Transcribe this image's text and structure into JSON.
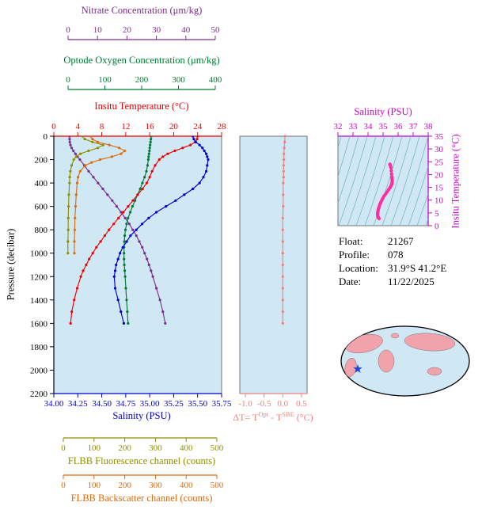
{
  "figure": {
    "bg": "#ffffff",
    "plot_bg": "#cfe8f4"
  },
  "axes": {
    "nitrate": {
      "title": "Nitrate Concentration (μm/kg)",
      "color": "#7b2d8b",
      "ticks": [
        "0",
        "10",
        "20",
        "30",
        "40",
        "50"
      ],
      "min": 0,
      "max": 50
    },
    "oxygen": {
      "title": "Optode Oxygen Concentration (μm/kg)",
      "color": "#007a33",
      "ticks": [
        "0",
        "100",
        "200",
        "300",
        "400"
      ],
      "min": 0,
      "max": 400
    },
    "temperature": {
      "title": "Insitu Temperature (°C)",
      "color": "#ee0000",
      "ticks": [
        "0",
        "4",
        "8",
        "12",
        "16",
        "20",
        "24",
        "28"
      ],
      "min": 0,
      "max": 28
    },
    "pressure": {
      "title": "Pressure (decibar)",
      "color": "#000000",
      "ticks": [
        "0",
        "200",
        "400",
        "600",
        "800",
        "1000",
        "1200",
        "1400",
        "1600",
        "1800",
        "2000",
        "2200"
      ],
      "min": 0,
      "max": 2200
    },
    "salinity": {
      "title": "Salinity (PSU)",
      "color": "#0000cd",
      "ticks": [
        "34.00",
        "34.25",
        "34.50",
        "34.75",
        "35.00",
        "35.25",
        "35.50",
        "35.75"
      ],
      "min": 34.0,
      "max": 35.75
    },
    "fluorescence": {
      "title": "FLBB Fluorescence channel (counts)",
      "color": "#8f8f00",
      "ticks": [
        "0",
        "100",
        "200",
        "300",
        "400",
        "500"
      ],
      "min": 0,
      "max": 500
    },
    "backscatter": {
      "title": "FLBB Backscatter channel (counts)",
      "color": "#dd6b10",
      "ticks": [
        "0",
        "100",
        "200",
        "300",
        "400",
        "500"
      ],
      "min": 0,
      "max": 500
    },
    "delta_t": {
      "title_parts": {
        "p1": "ΔT= T",
        "s1": "Opt",
        "p2": " - T",
        "s2": "SBE",
        "p3": " (°C)"
      },
      "color": "#f08080",
      "ticks": [
        "-1.0",
        "-0.5",
        "0.0",
        "0.5"
      ],
      "min": -1.15,
      "max": 0.65
    },
    "ts_salinity": {
      "title": "Salinity (PSU)",
      "color": "#cc00cc",
      "ticks": [
        "32",
        "33",
        "34",
        "35",
        "36",
        "37",
        "38"
      ],
      "min": 32,
      "max": 38
    },
    "ts_temperature": {
      "title": "Insitu Temperature (°C)",
      "color": "#cc00cc",
      "ticks": [
        "0",
        "5",
        "10",
        "15",
        "20",
        "25",
        "30",
        "35"
      ],
      "min": 0,
      "max": 35
    }
  },
  "info": {
    "float_label": "Float:",
    "float_value": "21267",
    "profile_label": "Profile:",
    "profile_value": "078",
    "location_label": "Location:",
    "location_value": "31.9°S  41.2°E",
    "date_label": "Date:",
    "date_value": "11/22/2025"
  },
  "map": {
    "ocean": "#cfe8f4",
    "land": "#f0a3ab",
    "outline": "#000000",
    "star_color": "#2040e0"
  },
  "chart_data": {
    "type": "line",
    "description": "Argo/BGC float vertical profiles vs pressure with ΔT panel and T-S diagram",
    "pressure_db": [
      0,
      25,
      50,
      75,
      100,
      125,
      150,
      175,
      200,
      250,
      300,
      350,
      400,
      450,
      500,
      550,
      600,
      650,
      700,
      750,
      800,
      850,
      900,
      950,
      1000,
      1050,
      1100,
      1150,
      1200,
      1300,
      1400,
      1500,
      1600
    ],
    "profiles": {
      "temperature_c": [
        24.0,
        23.9,
        23.6,
        22.8,
        21.5,
        20.2,
        19.0,
        18.2,
        17.6,
        16.9,
        16.4,
        16.0,
        15.5,
        14.8,
        14.0,
        13.2,
        12.4,
        11.6,
        10.8,
        10.0,
        9.2,
        8.5,
        7.8,
        7.1,
        6.5,
        5.9,
        5.4,
        4.9,
        4.5,
        3.9,
        3.4,
        3.0,
        2.8
      ],
      "salinity_psu": [
        35.45,
        35.46,
        35.48,
        35.52,
        35.55,
        35.57,
        35.59,
        35.6,
        35.61,
        35.6,
        35.59,
        35.56,
        35.52,
        35.45,
        35.36,
        35.27,
        35.17,
        35.07,
        34.99,
        34.92,
        34.86,
        34.8,
        34.76,
        34.72,
        34.69,
        34.67,
        34.65,
        34.64,
        34.63,
        34.64,
        34.67,
        34.7,
        34.73
      ],
      "oxygen_umkg": [
        226,
        225,
        224,
        223,
        222,
        221,
        220,
        219,
        218,
        216,
        213,
        208,
        202,
        196,
        189,
        182,
        175,
        169,
        163,
        159,
        156,
        154,
        153,
        152,
        152,
        152,
        153,
        154,
        155,
        157,
        159,
        161,
        163
      ],
      "nitrate_umkg": [
        0.5,
        0.5,
        0.6,
        0.8,
        1.2,
        1.8,
        2.5,
        3.2,
        4.0,
        5.5,
        7.0,
        8.6,
        10.2,
        11.8,
        13.4,
        15.0,
        16.5,
        18.0,
        19.4,
        20.8,
        22.0,
        23.2,
        24.2,
        25.2,
        26.0,
        26.8,
        27.5,
        28.2,
        28.8,
        30.0,
        31.2,
        32.2,
        33.0
      ]
    },
    "fluorescence": {
      "pressure_db": [
        0,
        25,
        50,
        75,
        100,
        125,
        150,
        175,
        200,
        250,
        300,
        350,
        400,
        500,
        600,
        700,
        800,
        900,
        1000
      ],
      "counts": [
        62,
        70,
        95,
        130,
        112,
        82,
        56,
        42,
        34,
        27,
        23,
        21,
        20,
        18,
        17,
        16,
        16,
        15,
        15
      ]
    },
    "backscatter": {
      "pressure_db": [
        0,
        25,
        50,
        75,
        100,
        125,
        150,
        175,
        200,
        225,
        250,
        300,
        350,
        400,
        500,
        600,
        700,
        800,
        900,
        1000
      ],
      "counts": [
        88,
        95,
        112,
        150,
        182,
        200,
        188,
        158,
        120,
        92,
        72,
        55,
        48,
        45,
        42,
        40,
        38,
        37,
        36,
        36
      ]
    },
    "delta_t": {
      "pressure_db": [
        0,
        50,
        100,
        150,
        200,
        250,
        300,
        350,
        400,
        500,
        600,
        700,
        800,
        900,
        1000,
        1100,
        1200,
        1300,
        1400,
        1500,
        1600
      ],
      "values_c": [
        0.06,
        0.05,
        0.04,
        0.03,
        0.03,
        0.02,
        0.02,
        0.02,
        0.01,
        0.01,
        0.01,
        0.0,
        0.0,
        0.0,
        0.0,
        0.0,
        0.0,
        0.0,
        0.0,
        0.0,
        0.0
      ]
    },
    "colors": {
      "temperature": "#ee0000",
      "salinity": "#0000cd",
      "oxygen": "#007a33",
      "nitrate": "#7b2d8b",
      "fluorescence": "#8f8f00",
      "backscatter": "#dd6b10",
      "delta_t": "#f08080",
      "ts_curve": "#ff2da0"
    }
  }
}
